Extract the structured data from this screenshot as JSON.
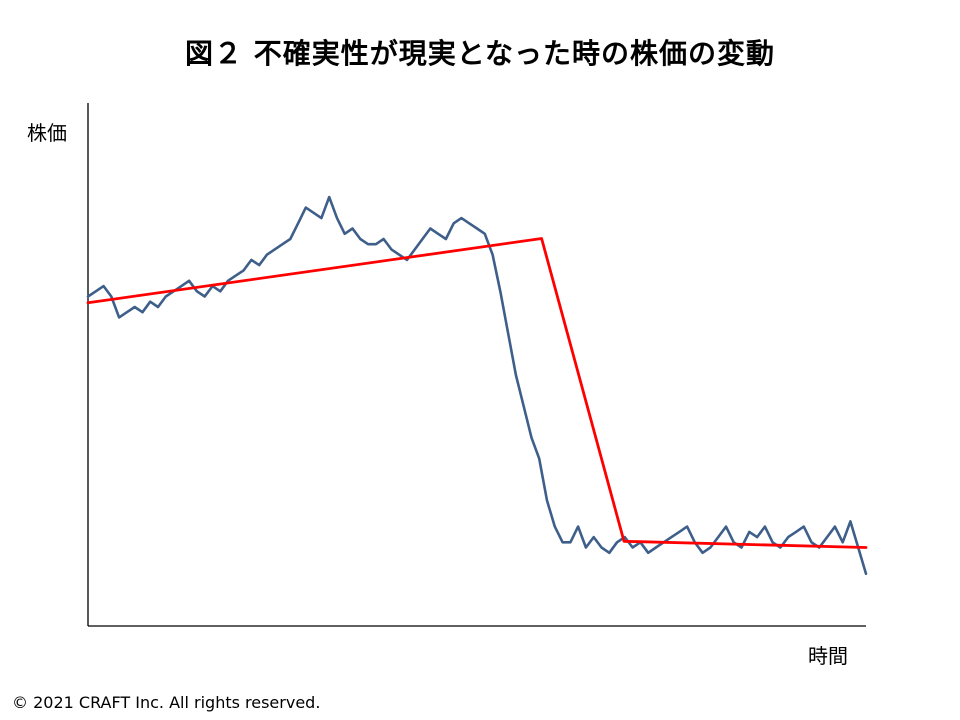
{
  "chart_data": {
    "type": "line",
    "title": "図２ 不確実性が現実となった時の株価の変動",
    "xlabel": "時間",
    "ylabel": "株価",
    "xlim": [
      0,
      100
    ],
    "ylim": [
      0,
      100
    ],
    "grid": false,
    "legend": "none",
    "series": [
      {
        "color": "#3e5f8a",
        "x": [
          0,
          1,
          2,
          3,
          4,
          5,
          6,
          7,
          8,
          9,
          10,
          11,
          12,
          13,
          14,
          15,
          16,
          17,
          18,
          19,
          20,
          21,
          22,
          23,
          24,
          25,
          26,
          27,
          28,
          29,
          30,
          31,
          32,
          33,
          34,
          35,
          36,
          37,
          38,
          39,
          40,
          41,
          42,
          43,
          44,
          45,
          46,
          47,
          48,
          49,
          50,
          51,
          52,
          53,
          54,
          55,
          56,
          57,
          58,
          59,
          60,
          61,
          62,
          63,
          64,
          65,
          66,
          67,
          68,
          69,
          70,
          71,
          72,
          73,
          74,
          75,
          76,
          77,
          78,
          79,
          80,
          81,
          82,
          83,
          84,
          85,
          86,
          87,
          88,
          89,
          90,
          91,
          92,
          93,
          94,
          95,
          96,
          97,
          98,
          99,
          100
        ],
        "values": [
          63,
          64,
          65,
          63,
          59,
          60,
          61,
          60,
          62,
          61,
          63,
          64,
          65,
          66,
          64,
          63,
          65,
          64,
          66,
          67,
          68,
          70,
          69,
          71,
          72,
          73,
          74,
          77,
          80,
          79,
          78,
          82,
          78,
          75,
          76,
          74,
          73,
          73,
          74,
          72,
          71,
          70,
          72,
          74,
          76,
          75,
          74,
          77,
          78,
          77,
          76,
          75,
          71,
          64,
          56,
          48,
          42,
          36,
          32,
          24,
          19,
          16,
          16,
          19,
          15,
          17,
          15,
          14,
          16,
          17,
          15,
          16,
          14,
          15,
          16,
          17,
          18,
          19,
          16,
          14,
          15,
          17,
          19,
          16,
          15,
          18,
          17,
          19,
          16,
          15,
          17,
          18,
          19,
          16,
          15,
          17,
          19,
          16,
          20,
          15,
          10
        ]
      },
      {
        "color": "#ff0000",
        "x": [
          0,
          58.3,
          68.9,
          100
        ],
        "values": [
          61.8,
          74.1,
          16.2,
          15
        ]
      }
    ]
  },
  "footer": {
    "copyright": "© 2021 CRAFT Inc. All rights reserved."
  }
}
